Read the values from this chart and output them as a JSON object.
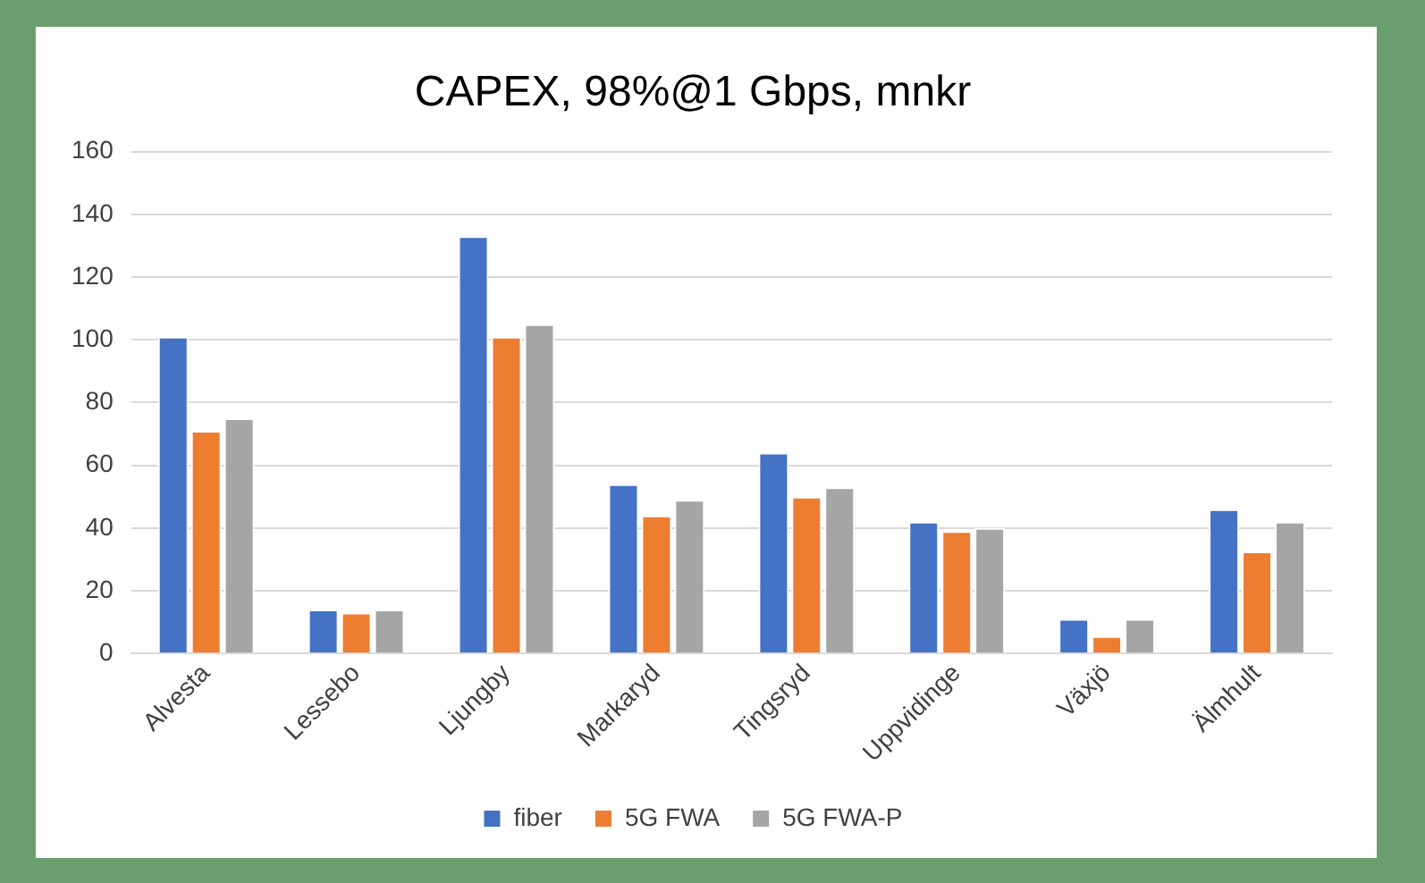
{
  "chart_data": {
    "type": "bar",
    "title": "CAPEX, 98%@1 Gbps, mnkr",
    "categories": [
      "Alvesta",
      "Lessebo",
      "Ljungby",
      "Markaryd",
      "Tingsryd",
      "Uppvidinge",
      "Växjö",
      "Älmhult"
    ],
    "series": [
      {
        "name": "fiber",
        "color": "#4472c4",
        "values": [
          101,
          14,
          133,
          54,
          64,
          42,
          11,
          46
        ]
      },
      {
        "name": "5G FWA",
        "color": "#ed7d31",
        "values": [
          71,
          13,
          101,
          44,
          50,
          39,
          5.5,
          32.5
        ]
      },
      {
        "name": "5G FWA-P",
        "color": "#a5a5a5",
        "values": [
          75,
          14,
          105,
          49,
          53,
          40,
          11,
          42
        ]
      }
    ],
    "ylim": [
      0,
      160
    ],
    "yticks": [
      0,
      20,
      40,
      60,
      80,
      100,
      120,
      140,
      160
    ],
    "grid": "y",
    "legend": "bottom"
  }
}
